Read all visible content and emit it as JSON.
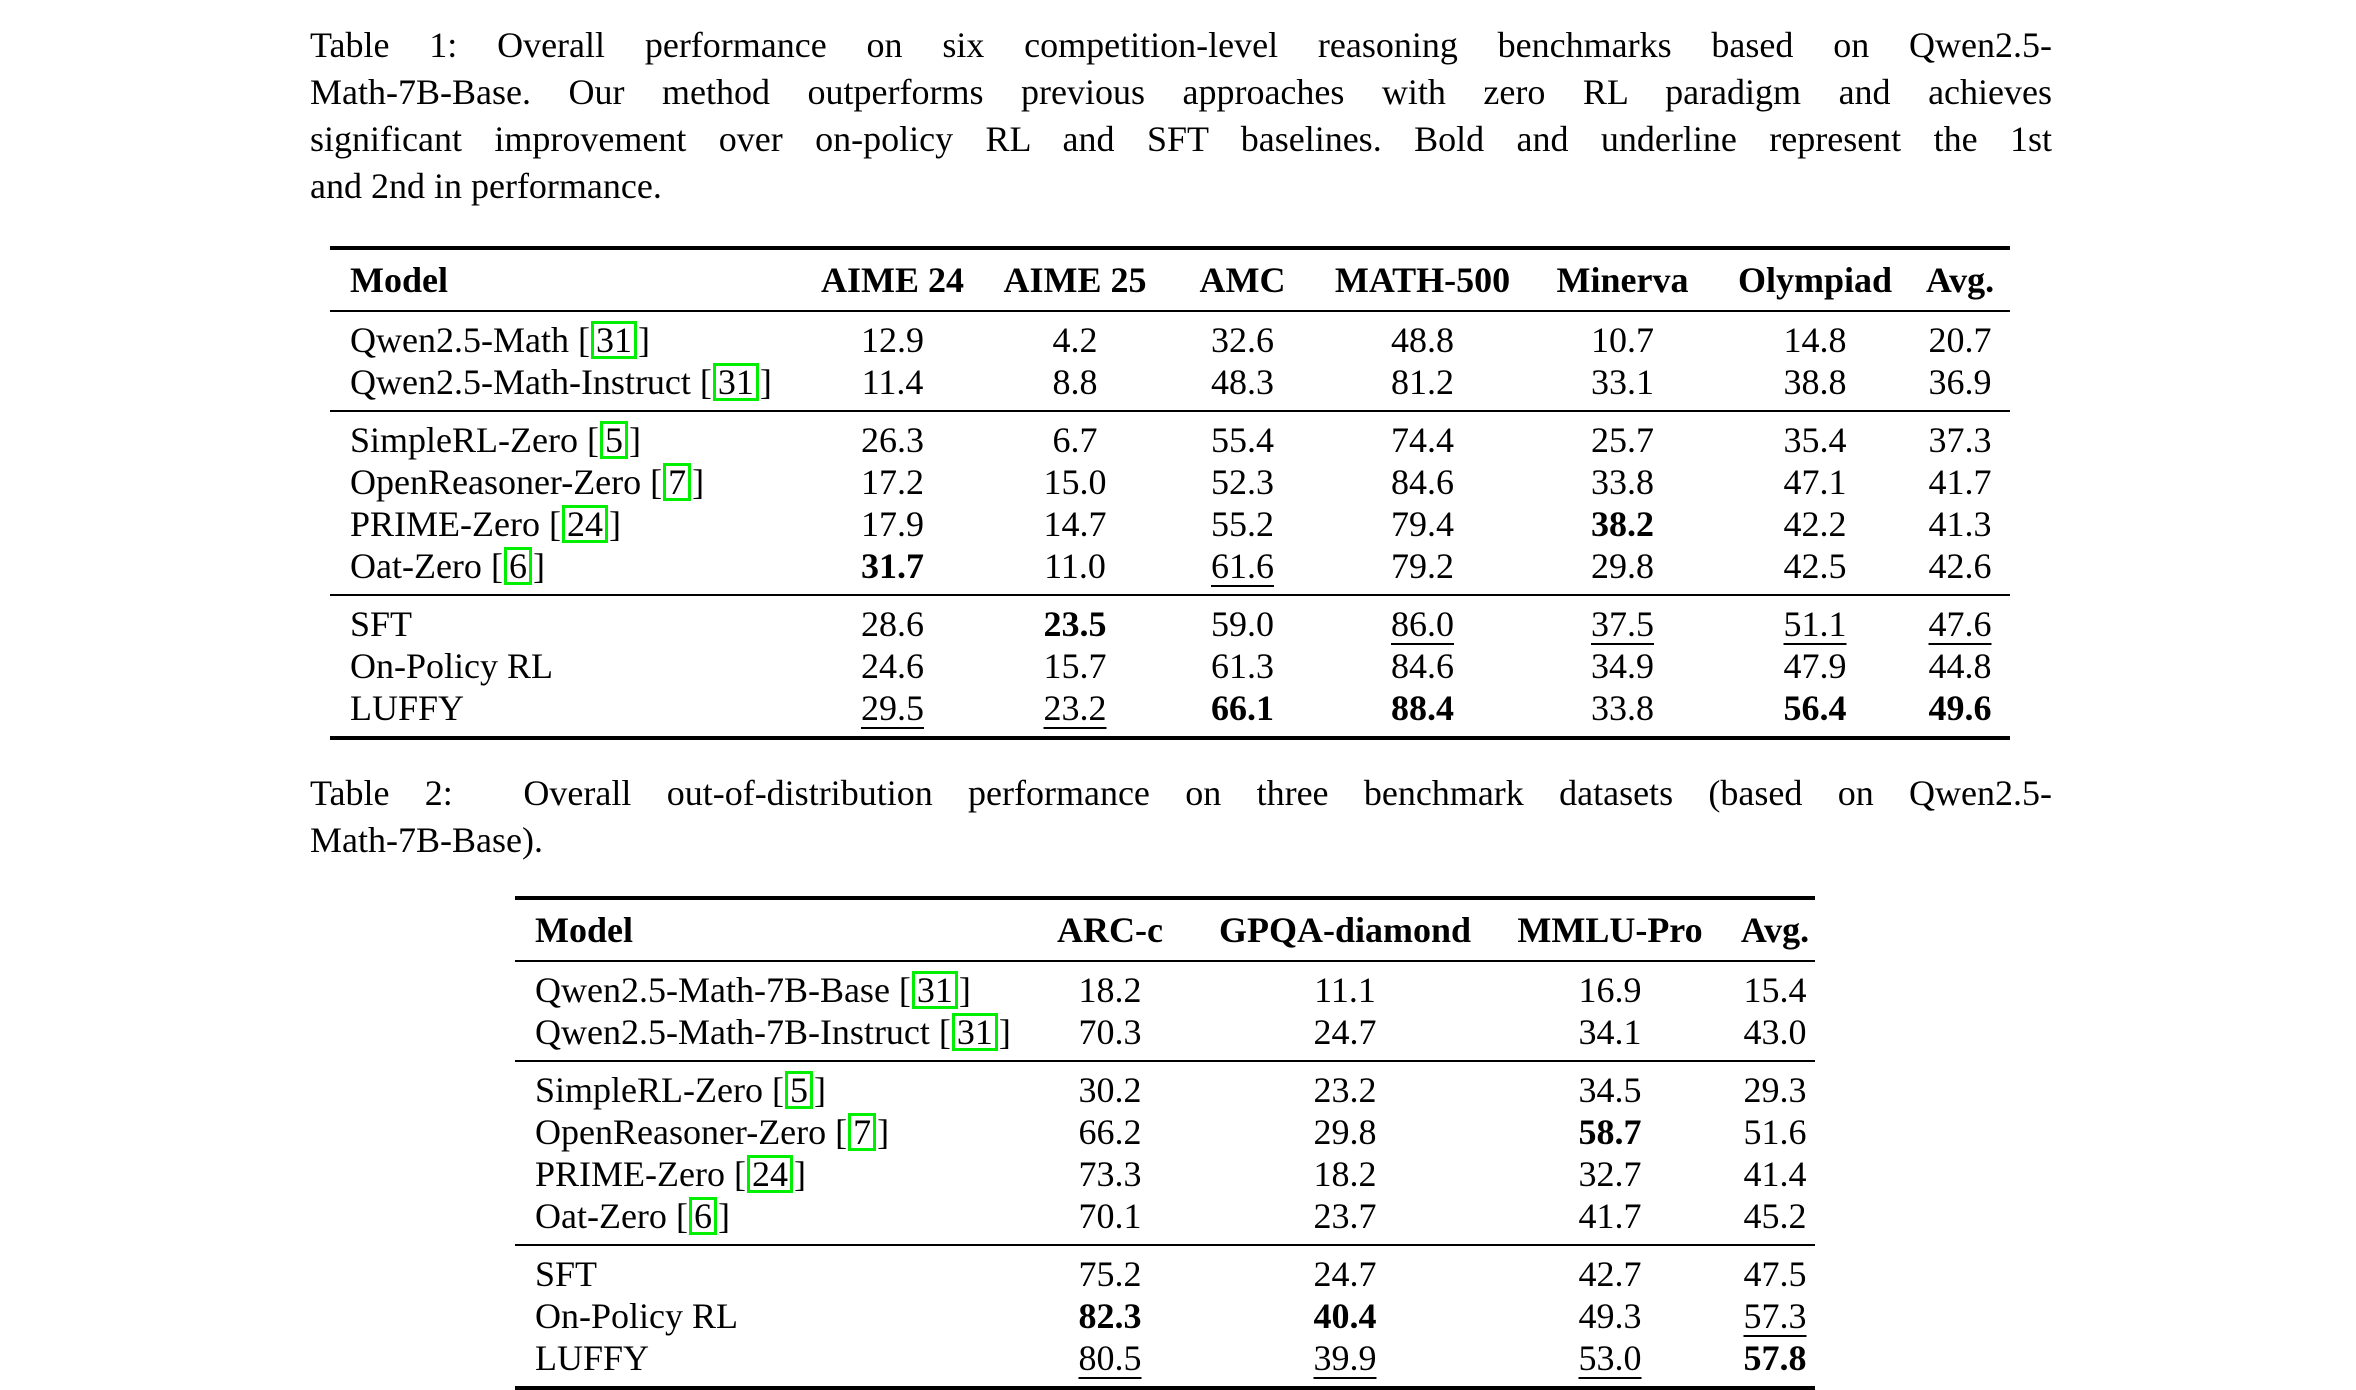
{
  "page": {
    "background": "#ffffff",
    "text_color": "#000000"
  },
  "citation": {
    "box_color": "#00ee00",
    "open": "[",
    "close": "]"
  },
  "table1": {
    "caption_lines": [
      "Table 1: Overall performance on six competition-level reasoning benchmarks based on Qwen2.5-",
      "Math-7B-Base. Our method outperforms previous approaches with zero RL paradigm and achieves",
      "significant improvement over on-policy RL and SFT baselines. Bold and underline represent the 1st",
      "and 2nd in performance."
    ],
    "caption_text": "Table 1: Overall performance on six competition-level reasoning benchmarks based on Qwen2.5-Math-7B-Base. Our method outperforms previous approaches with zero RL paradigm and achieves significant improvement over on-policy RL and SFT baselines. Bold and underline represent the 1st and 2nd in performance.",
    "columns": [
      "Model",
      "AIME 24",
      "AIME 25",
      "AMC",
      "MATH-500",
      "Minerva",
      "Olympiad",
      "Avg."
    ],
    "groups": [
      {
        "rows": [
          {
            "model": "Qwen2.5-Math",
            "cite": "31",
            "values": [
              "12.9",
              "4.2",
              "32.6",
              "48.8",
              "10.7",
              "14.8",
              "20.7"
            ],
            "emph": [
              "",
              "",
              "",
              "",
              "",
              "",
              ""
            ]
          },
          {
            "model": "Qwen2.5-Math-Instruct",
            "cite": "31",
            "values": [
              "11.4",
              "8.8",
              "48.3",
              "81.2",
              "33.1",
              "38.8",
              "36.9"
            ],
            "emph": [
              "",
              "",
              "",
              "",
              "",
              "",
              ""
            ]
          }
        ]
      },
      {
        "rows": [
          {
            "model": "SimpleRL-Zero",
            "cite": "5",
            "values": [
              "26.3",
              "6.7",
              "55.4",
              "74.4",
              "25.7",
              "35.4",
              "37.3"
            ],
            "emph": [
              "",
              "",
              "",
              "",
              "",
              "",
              ""
            ]
          },
          {
            "model": "OpenReasoner-Zero",
            "cite": "7",
            "values": [
              "17.2",
              "15.0",
              "52.3",
              "84.6",
              "33.8",
              "47.1",
              "41.7"
            ],
            "emph": [
              "",
              "",
              "",
              "",
              "",
              "",
              ""
            ]
          },
          {
            "model": "PRIME-Zero",
            "cite": "24",
            "values": [
              "17.9",
              "14.7",
              "55.2",
              "79.4",
              "38.2",
              "42.2",
              "41.3"
            ],
            "emph": [
              "",
              "",
              "",
              "",
              "b",
              "",
              ""
            ]
          },
          {
            "model": "Oat-Zero",
            "cite": "6",
            "values": [
              "31.7",
              "11.0",
              "61.6",
              "79.2",
              "29.8",
              "42.5",
              "42.6"
            ],
            "emph": [
              "b",
              "",
              "u",
              "",
              "",
              "",
              ""
            ]
          }
        ]
      },
      {
        "rows": [
          {
            "model": "SFT",
            "cite": null,
            "values": [
              "28.6",
              "23.5",
              "59.0",
              "86.0",
              "37.5",
              "51.1",
              "47.6"
            ],
            "emph": [
              "",
              "b",
              "",
              "u",
              "u",
              "u",
              "u"
            ]
          },
          {
            "model": "On-Policy RL",
            "cite": null,
            "values": [
              "24.6",
              "15.7",
              "61.3",
              "84.6",
              "34.9",
              "47.9",
              "44.8"
            ],
            "emph": [
              "",
              "",
              "",
              "",
              "",
              "",
              ""
            ]
          },
          {
            "model": "LUFFY",
            "cite": null,
            "values": [
              "29.5",
              "23.2",
              "66.1",
              "88.4",
              "33.8",
              "56.4",
              "49.6"
            ],
            "emph": [
              "u",
              "u",
              "b",
              "b",
              "",
              "b",
              "b"
            ]
          }
        ]
      }
    ]
  },
  "table2": {
    "caption_lines": [
      "Table 2:  Overall out-of-distribution performance on three benchmark datasets (based on Qwen2.5-",
      "Math-7B-Base)."
    ],
    "caption_text": "Table 2: Overall out-of-distribution performance on three benchmark datasets (based on Qwen2.5-Math-7B-Base).",
    "columns": [
      "Model",
      "ARC-c",
      "GPQA-diamond",
      "MMLU-Pro",
      "Avg."
    ],
    "groups": [
      {
        "rows": [
          {
            "model": "Qwen2.5-Math-7B-Base",
            "cite": "31",
            "values": [
              "18.2",
              "11.1",
              "16.9",
              "15.4"
            ],
            "emph": [
              "",
              "",
              "",
              ""
            ]
          },
          {
            "model": "Qwen2.5-Math-7B-Instruct",
            "cite": "31",
            "values": [
              "70.3",
              "24.7",
              "34.1",
              "43.0"
            ],
            "emph": [
              "",
              "",
              "",
              ""
            ]
          }
        ]
      },
      {
        "rows": [
          {
            "model": "SimpleRL-Zero",
            "cite": "5",
            "values": [
              "30.2",
              "23.2",
              "34.5",
              "29.3"
            ],
            "emph": [
              "",
              "",
              "",
              ""
            ]
          },
          {
            "model": "OpenReasoner-Zero",
            "cite": "7",
            "values": [
              "66.2",
              "29.8",
              "58.7",
              "51.6"
            ],
            "emph": [
              "",
              "",
              "b",
              ""
            ]
          },
          {
            "model": "PRIME-Zero",
            "cite": "24",
            "values": [
              "73.3",
              "18.2",
              "32.7",
              "41.4"
            ],
            "emph": [
              "",
              "",
              "",
              ""
            ]
          },
          {
            "model": "Oat-Zero",
            "cite": "6",
            "values": [
              "70.1",
              "23.7",
              "41.7",
              "45.2"
            ],
            "emph": [
              "",
              "",
              "",
              ""
            ]
          }
        ]
      },
      {
        "rows": [
          {
            "model": "SFT",
            "cite": null,
            "values": [
              "75.2",
              "24.7",
              "42.7",
              "47.5"
            ],
            "emph": [
              "",
              "",
              "",
              ""
            ]
          },
          {
            "model": "On-Policy RL",
            "cite": null,
            "values": [
              "82.3",
              "40.4",
              "49.3",
              "57.3"
            ],
            "emph": [
              "b",
              "b",
              "",
              "u"
            ]
          },
          {
            "model": "LUFFY",
            "cite": null,
            "values": [
              "80.5",
              "39.9",
              "53.0",
              "57.8"
            ],
            "emph": [
              "u",
              "u",
              "u",
              "b"
            ]
          }
        ]
      }
    ]
  }
}
